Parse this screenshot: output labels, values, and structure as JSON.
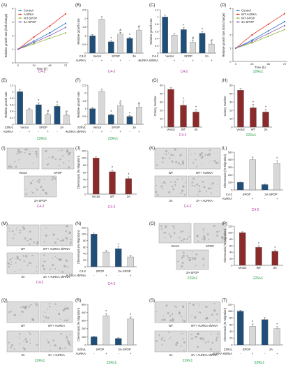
{
  "colors": {
    "navy": "#1f4e79",
    "red": "#8b2a2a",
    "light": "#d8d8d8",
    "white": "#ffffff",
    "c42": "#b03aa0",
    "r22": "#2aa04a",
    "ctrl": "#2b6fc4",
    "aurka": "#e03a2a",
    "wtspop": "#8dbd3a",
    "spop3a": "#8a5ab8"
  },
  "panels": {
    "A": {
      "label": "(A)",
      "cell": "C4-2"
    },
    "B": {
      "label": "(B)",
      "cell": "C4-2",
      "row1": [
        "C4-2",
        "Vector",
        "SPOP",
        "3A"
      ],
      "row2_name": "AURKA",
      "row2": [
        "-",
        "+",
        "-",
        "+",
        "-",
        "+"
      ]
    },
    "C": {
      "label": "(C)",
      "cell": "C4-2",
      "row1": [
        "C4-2",
        "Vector",
        "SPOP",
        "3A"
      ],
      "row2_name": "AURKA shRNA",
      "row2": [
        "-",
        "+",
        "-",
        "+",
        "-",
        "+"
      ]
    },
    "D": {
      "label": "(D)",
      "cell": "22Rv1"
    },
    "E": {
      "label": "(E)",
      "cell": "22Rv1",
      "row1": [
        "22Rv1",
        "Vector",
        "SPOP",
        "3A"
      ],
      "row2_name": "AURKA",
      "row2": [
        "-",
        "+",
        "-",
        "+",
        "-",
        "+"
      ]
    },
    "F": {
      "label": "(F)",
      "cell": "22Rv1",
      "row1": [
        "22Rv1",
        "Vector",
        "SPOP",
        "3A"
      ],
      "row2_name": "AURKA shRNA",
      "row2": [
        "-",
        "+",
        "-",
        "+",
        "-",
        "+"
      ]
    },
    "G": {
      "label": "(G)",
      "cell": "C4-2"
    },
    "H": {
      "label": "(H)",
      "cell": "22Rv1"
    },
    "I": {
      "label": "(I)",
      "cell": "C4-2",
      "images": [
        "Vector",
        "SPOP",
        "3A-SPOP"
      ]
    },
    "J": {
      "label": "(J)",
      "cell": "C4-2"
    },
    "K": {
      "label": "(K)",
      "cell": "C4-2",
      "images": [
        "WT",
        "WT+ AURKA",
        "3A",
        "3A + AURKA"
      ]
    },
    "L": {
      "label": "(L)",
      "cell": "C4-2",
      "row1": [
        "C4-2",
        "SPOP",
        "3A-SPOP"
      ],
      "row2_name": "AURKA",
      "row2": [
        "-",
        "+",
        "-",
        "+"
      ]
    },
    "M": {
      "label": "(M)",
      "cell": "C4-2",
      "images": [
        "WT",
        "WT+ AURKA shRNA",
        "3A",
        "3A + AURKA shRNA"
      ]
    },
    "N": {
      "label": "(N)",
      "cell": "C4-2",
      "row1": [
        "C4-2",
        "SPOP",
        "3A-SPOP"
      ],
      "row2_name": "AURKA shRNA",
      "row2": [
        "-",
        "+",
        "-",
        "+"
      ]
    },
    "O": {
      "label": "(O)",
      "cell": "22Rv1",
      "images": [
        "Vector",
        "SPOP",
        "3A-SPOP"
      ]
    },
    "P": {
      "label": "(P)",
      "cell": "22Rv1"
    },
    "Q": {
      "label": "(Q)",
      "cell": "22Rv1",
      "images": [
        "WT",
        "WT+ AURKA",
        "3A",
        "3A + AURKA"
      ]
    },
    "R": {
      "label": "(R)",
      "cell": "22Rv1",
      "row1": [
        "22Rv1",
        "SPOP",
        "3A-SPOP"
      ],
      "row2_name": "AURKA",
      "row2": [
        "-",
        "+",
        "-",
        "+"
      ]
    },
    "S": {
      "label": "(S)",
      "cell": "22Rv1",
      "images": [
        "WT",
        "WT+ AURKA shRNA",
        "3A",
        "3A + AURKA shRNA"
      ]
    },
    "T": {
      "label": "(T)",
      "cell": "22Rv1",
      "row1": [
        "22Rv1",
        "SPOP",
        "3A"
      ],
      "row2_name": "AURKA shRNA",
      "row2": [
        "-",
        "+",
        "-",
        "+"
      ]
    }
  },
  "chart_data": [
    {
      "id": "A",
      "type": "line",
      "xlabel": "Time (h)",
      "ylabel": "Relative growth rate (fold change)",
      "x": [
        0,
        24,
        48,
        72
      ],
      "xticks": [
        "0",
        "24",
        "48",
        "72"
      ],
      "ylim": [
        0,
        4
      ],
      "yticks": [
        "0",
        "1",
        "2",
        "3",
        "4"
      ],
      "series": [
        {
          "name": "Control",
          "color": "#2b6fc4",
          "values": [
            1.0,
            1.6,
            2.2,
            2.9
          ]
        },
        {
          "name": "AURKA",
          "color": "#e03a2a",
          "values": [
            1.0,
            1.9,
            2.7,
            3.6
          ]
        },
        {
          "name": "WT-SPOP",
          "color": "#8dbd3a",
          "values": [
            1.0,
            1.4,
            1.8,
            2.2
          ]
        },
        {
          "name": "3A-SPOP",
          "color": "#8a5ab8",
          "values": [
            1.0,
            1.5,
            2.0,
            2.6
          ]
        }
      ]
    },
    {
      "id": "B",
      "type": "bar",
      "ylabel": "Relative growth rate",
      "ylim": [
        0,
        2.5
      ],
      "yticks": [
        "0",
        "0.5",
        "1",
        "1.5",
        "2",
        "2.5"
      ],
      "values": [
        1.0,
        1.95,
        0.65,
        1.1,
        0.85,
        1.3
      ],
      "colors": [
        "#1f4e79",
        "#d8d8d8",
        "#1f4e79",
        "#d8d8d8",
        "#1f4e79",
        "#d8d8d8"
      ],
      "errors": [
        0.08,
        0.15,
        0.06,
        0.1,
        0.07,
        0.1
      ],
      "marks": [
        "",
        "",
        "*",
        "#",
        "*",
        "#"
      ]
    },
    {
      "id": "C",
      "type": "bar",
      "ylabel": "Relative growth rate",
      "ylim": [
        0,
        1.2
      ],
      "yticks": [
        "0",
        "0.2",
        "0.4",
        "0.6",
        "0.8",
        "1",
        "1.2"
      ],
      "values": [
        1.0,
        0.5,
        0.65,
        0.3,
        0.55,
        0.25
      ],
      "colors": [
        "#1f4e79",
        "#d8d8d8",
        "#1f4e79",
        "#d8d8d8",
        "#1f4e79",
        "#d8d8d8"
      ],
      "errors": [
        0.06,
        0.04,
        0.05,
        0.05,
        0.05,
        0.04
      ],
      "marks": [
        "",
        "",
        "*",
        "#",
        "*",
        "#"
      ]
    },
    {
      "id": "D",
      "type": "line",
      "xlabel": "Time (h)",
      "ylabel": "Relative growth rate (fold change)",
      "x": [
        0,
        24,
        48,
        72
      ],
      "xticks": [
        "0",
        "24",
        "48",
        "72"
      ],
      "ylim": [
        0,
        4
      ],
      "yticks": [
        "0",
        "1",
        "2",
        "3",
        "4"
      ],
      "series": [
        {
          "name": "Control",
          "color": "#2b6fc4",
          "values": [
            1.0,
            1.6,
            2.3,
            3.0
          ]
        },
        {
          "name": "WT-AURKA",
          "color": "#e03a2a",
          "values": [
            1.0,
            2.0,
            2.8,
            3.6
          ]
        },
        {
          "name": "WT-SPOP",
          "color": "#8dbd3a",
          "values": [
            1.0,
            1.4,
            1.9,
            2.4
          ]
        },
        {
          "name": "3A-SPOP",
          "color": "#8a5ab8",
          "values": [
            1.0,
            1.5,
            2.1,
            2.7
          ]
        }
      ]
    },
    {
      "id": "E",
      "type": "bar",
      "ylabel": "Relative growth rate",
      "ylim": [
        0,
        1.2
      ],
      "yticks": [
        "0",
        "0.2",
        "0.4",
        "0.6",
        "0.8",
        "1",
        "1.2"
      ],
      "values": [
        1.0,
        0.45,
        0.6,
        0.3,
        0.55,
        0.28
      ],
      "colors": [
        "#1f4e79",
        "#d8d8d8",
        "#1f4e79",
        "#d8d8d8",
        "#1f4e79",
        "#d8d8d8"
      ],
      "errors": [
        0.07,
        0.04,
        0.06,
        0.04,
        0.05,
        0.04
      ],
      "marks": [
        "",
        "",
        "*",
        "#",
        "*",
        "#"
      ]
    },
    {
      "id": "F",
      "type": "bar",
      "ylabel": "Relative growth rate",
      "ylim": [
        0,
        2.5
      ],
      "yticks": [
        "0",
        "0.5",
        "1",
        "1.5",
        "2",
        "2.5"
      ],
      "values": [
        1.0,
        2.1,
        0.6,
        1.2,
        0.5,
        1.1
      ],
      "colors": [
        "#1f4e79",
        "#d8d8d8",
        "#1f4e79",
        "#d8d8d8",
        "#1f4e79",
        "#d8d8d8"
      ],
      "errors": [
        0.08,
        0.15,
        0.06,
        0.1,
        0.06,
        0.1
      ],
      "marks": [
        "",
        "",
        "*",
        "#",
        "*",
        "#"
      ]
    },
    {
      "id": "G",
      "type": "bar",
      "ylabel": "Colony Number",
      "ylim": [
        0,
        50
      ],
      "yticks": [
        "0",
        "10",
        "20",
        "30",
        "40",
        "50"
      ],
      "categories": [
        "Vector",
        "WT",
        "3A"
      ],
      "values": [
        45,
        26,
        18
      ],
      "colors": [
        "#8b2a2a",
        "#8b2a2a",
        "#8b2a2a"
      ],
      "errors": [
        2,
        5,
        3
      ],
      "marks": [
        "",
        "*",
        "*"
      ]
    },
    {
      "id": "H",
      "type": "bar",
      "ylabel": "Colony Number",
      "ylim": [
        0,
        50
      ],
      "yticks": [
        "0",
        "10",
        "20",
        "30",
        "40",
        "50"
      ],
      "categories": [
        "Vector",
        "WT",
        "3A"
      ],
      "values": [
        44,
        23,
        18
      ],
      "colors": [
        "#8b2a2a",
        "#8b2a2a",
        "#8b2a2a"
      ],
      "errors": [
        2,
        4,
        3
      ],
      "marks": [
        "",
        "*",
        "*"
      ]
    },
    {
      "id": "J",
      "type": "bar",
      "ylabel": "Chemotaxis (% Migration)",
      "ylim": [
        0,
        120
      ],
      "yticks": [
        "0",
        "20",
        "40",
        "60",
        "80",
        "100",
        "120"
      ],
      "categories": [
        "Vector",
        "WT",
        "3A"
      ],
      "values": [
        100,
        62,
        43
      ],
      "colors": [
        "#8b2a2a",
        "#8b2a2a",
        "#8b2a2a"
      ],
      "errors": [
        3,
        5,
        5
      ],
      "marks": [
        "",
        "*",
        "*"
      ]
    },
    {
      "id": "L",
      "type": "bar",
      "ylabel": "Chemotaxis (% Migration)",
      "ylim": [
        0,
        500
      ],
      "yticks": [
        "0",
        "100",
        "200",
        "300",
        "400",
        "500"
      ],
      "values": [
        100,
        400,
        70,
        350
      ],
      "colors": [
        "#1f4e79",
        "#d8d8d8",
        "#1f4e79",
        "#d8d8d8"
      ],
      "errors": [
        5,
        35,
        8,
        35
      ],
      "marks": [
        "",
        "",
        "",
        "*"
      ]
    },
    {
      "id": "N",
      "type": "bar",
      "ylabel": "Chemotaxis (% Migration)",
      "ylim": [
        0,
        120
      ],
      "yticks": [
        "0",
        "20",
        "40",
        "60",
        "80",
        "100",
        "120"
      ],
      "values": [
        100,
        45,
        55,
        30
      ],
      "colors": [
        "#1f4e79",
        "#d8d8d8",
        "#1f4e79",
        "#d8d8d8"
      ],
      "errors": [
        3,
        5,
        6,
        5
      ],
      "marks": [
        "",
        "",
        "*",
        ""
      ]
    },
    {
      "id": "P",
      "type": "bar",
      "ylabel": "Chemotaxis (% Migration)",
      "ylim": [
        0,
        120
      ],
      "yticks": [
        "0",
        "20",
        "40",
        "60",
        "80",
        "100",
        "120"
      ],
      "categories": [
        "Vector",
        "WT",
        "3A"
      ],
      "values": [
        100,
        55,
        43
      ],
      "colors": [
        "#8b2a2a",
        "#8b2a2a",
        "#8b2a2a"
      ],
      "errors": [
        3,
        5,
        4
      ],
      "marks": [
        "",
        "*",
        "*"
      ]
    },
    {
      "id": "R",
      "type": "bar",
      "ylabel": "Chemotaxis (% Migration)",
      "ylim": [
        0,
        500
      ],
      "yticks": [
        "0",
        "100",
        "200",
        "300",
        "400",
        "500"
      ],
      "values": [
        100,
        360,
        80,
        320
      ],
      "colors": [
        "#1f4e79",
        "#d8d8d8",
        "#1f4e79",
        "#d8d8d8"
      ],
      "errors": [
        5,
        25,
        8,
        25
      ],
      "marks": [
        "",
        "*",
        "",
        "*"
      ]
    },
    {
      "id": "T",
      "type": "bar",
      "ylabel": "Chemotaxis (% Migration)",
      "ylim": [
        0,
        120
      ],
      "yticks": [
        "0",
        "20",
        "40",
        "60",
        "80",
        "100",
        "120"
      ],
      "values": [
        100,
        55,
        75,
        48
      ],
      "colors": [
        "#1f4e79",
        "#d8d8d8",
        "#1f4e79",
        "#d8d8d8"
      ],
      "errors": [
        3,
        7,
        6,
        6
      ],
      "marks": [
        "",
        "*",
        "",
        "*"
      ]
    }
  ]
}
